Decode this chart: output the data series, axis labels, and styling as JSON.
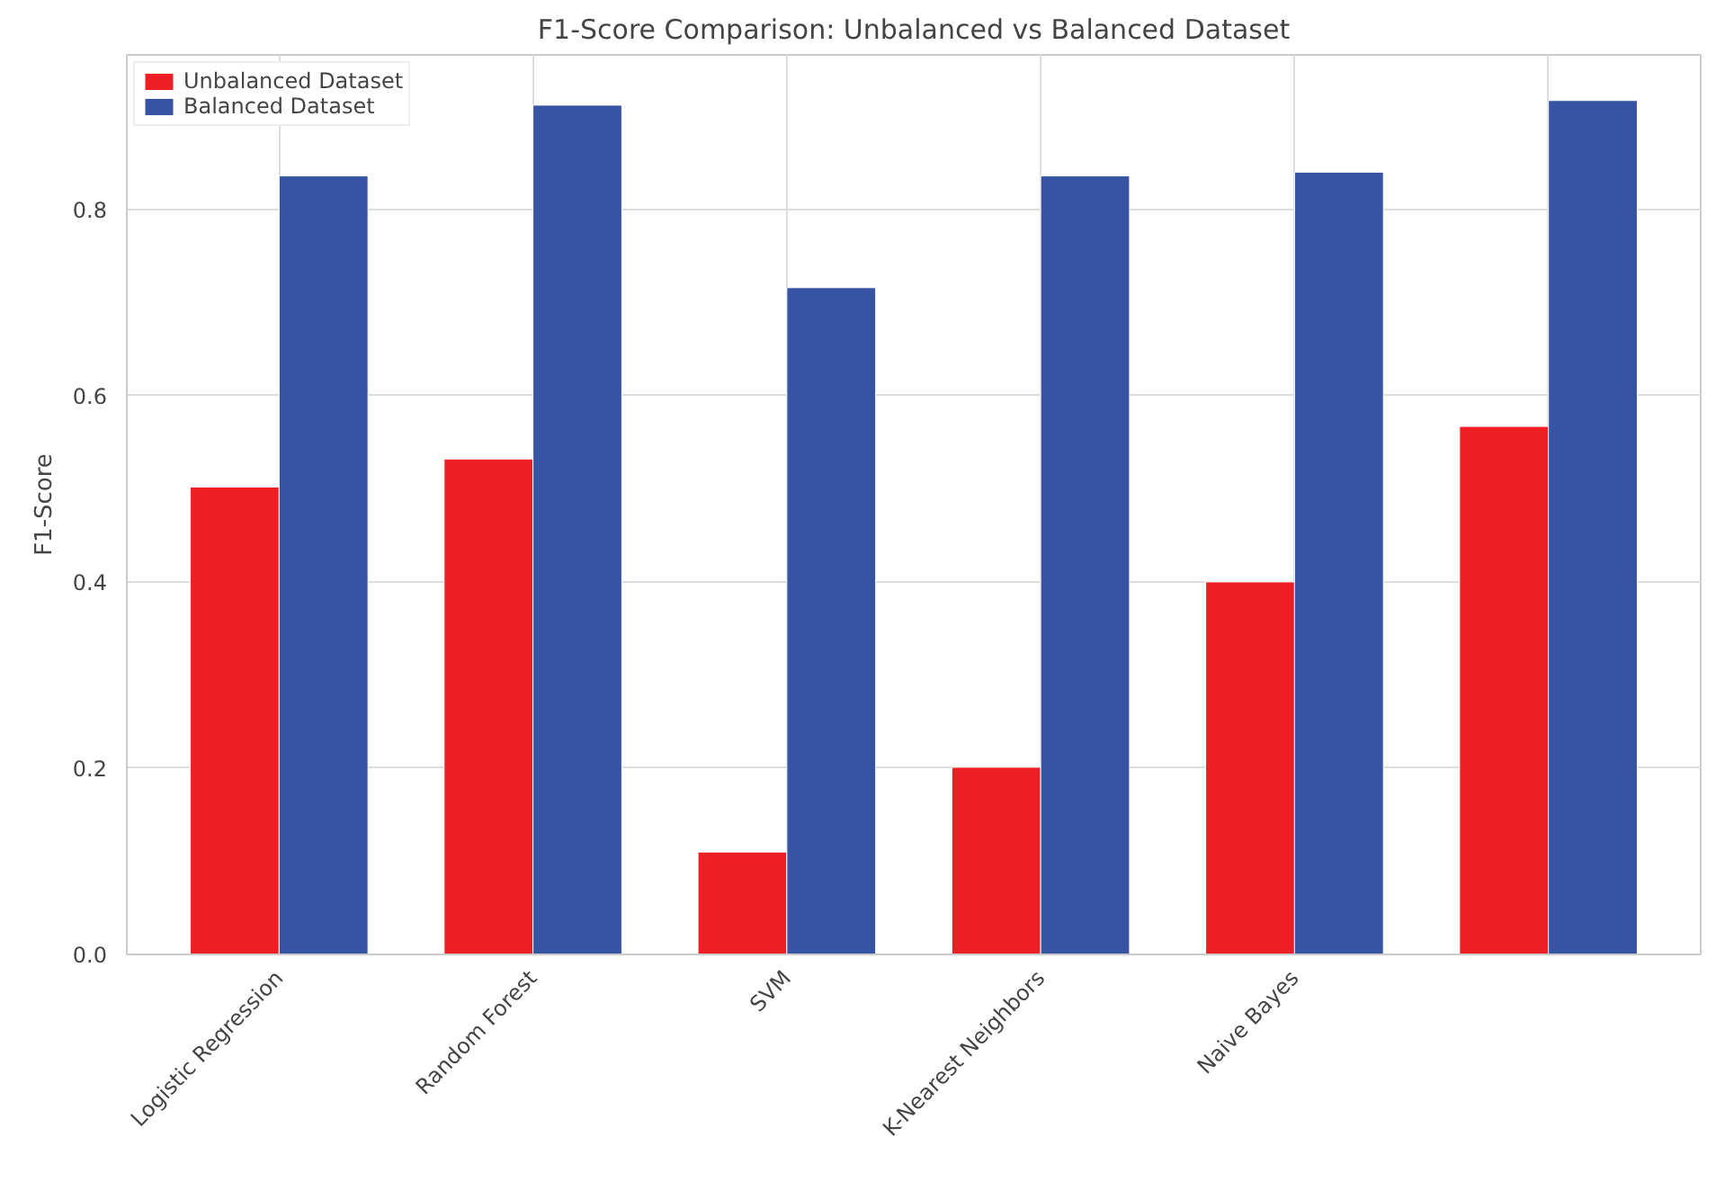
{
  "chart_data": {
    "type": "bar",
    "title": "F1-Score Comparison: Unbalanced vs Balanced Dataset",
    "ylabel": "F1-Score",
    "categories": [
      "Logistic Regression",
      "Random Forest",
      "SVM",
      "K-Nearest Neighbors",
      "Naive Bayes",
      null
    ],
    "series": [
      {
        "name": "Unbalanced Dataset",
        "color": "#ed1f24",
        "values": [
          0.502,
          0.532,
          0.11,
          0.201,
          0.4,
          0.567
        ]
      },
      {
        "name": "Balanced Dataset",
        "color": "#3653a4",
        "values": [
          0.836,
          0.912,
          0.716,
          0.836,
          0.84,
          0.917
        ]
      }
    ],
    "ylim": [
      0,
      0.966
    ],
    "yticks": [
      {
        "value": 0,
        "label": "0.0"
      },
      {
        "value": 0.2,
        "label": "0.2"
      },
      {
        "value": 0.4,
        "label": "0.4"
      },
      {
        "value": 0.6,
        "label": "0.6"
      },
      {
        "value": 0.8,
        "label": "0.8"
      }
    ],
    "grid": true,
    "legend": "top left"
  }
}
